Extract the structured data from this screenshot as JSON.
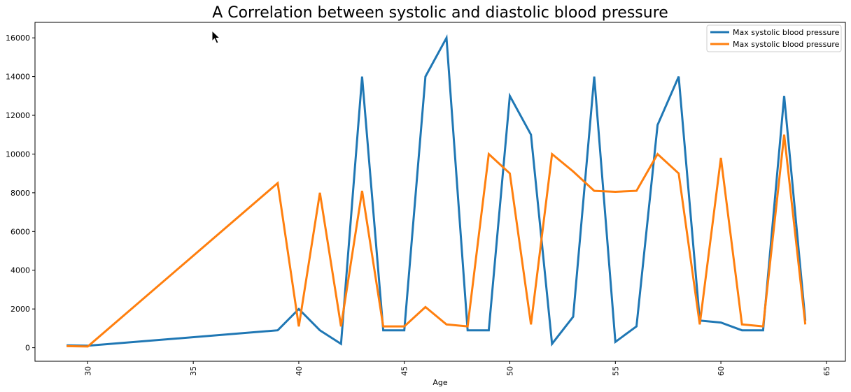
{
  "chart_data": {
    "type": "line",
    "title": "A Correlation between systolic and diastolic blood pressure",
    "xlabel": "Age",
    "ylabel": "",
    "xlim": [
      27.5,
      65.9
    ],
    "ylim": [
      -700,
      16800
    ],
    "xticks": [
      30,
      35,
      40,
      45,
      50,
      55,
      60,
      65
    ],
    "yticks": [
      0,
      2000,
      4000,
      6000,
      8000,
      10000,
      12000,
      14000,
      16000
    ],
    "grid": false,
    "legend_position": "top-right",
    "x": [
      29,
      30,
      39,
      40,
      41,
      42,
      43,
      44,
      45,
      46,
      47,
      48,
      49,
      50,
      51,
      52,
      53,
      54,
      55,
      56,
      57,
      58,
      59,
      60,
      61,
      62,
      63,
      64
    ],
    "series": [
      {
        "name": "Max systolic blood pressure",
        "color": "#1f77b4",
        "values": [
          120,
          100,
          900,
          2000,
          900,
          200,
          14000,
          900,
          900,
          14000,
          16000,
          900,
          900,
          13000,
          11000,
          200,
          1600,
          14000,
          300,
          1100,
          11500,
          14000,
          1400,
          1300,
          900,
          900,
          13000,
          1400
        ]
      },
      {
        "name": "Max systolic blood pressure",
        "color": "#ff7f0e",
        "values": [
          80,
          60,
          8500,
          1100,
          8000,
          1100,
          8100,
          1100,
          1100,
          2100,
          1200,
          1100,
          10000,
          9000,
          1200,
          10000,
          9100,
          8100,
          8050,
          8100,
          10000,
          9000,
          1200,
          9800,
          1200,
          1100,
          11000,
          1200
        ]
      }
    ]
  }
}
